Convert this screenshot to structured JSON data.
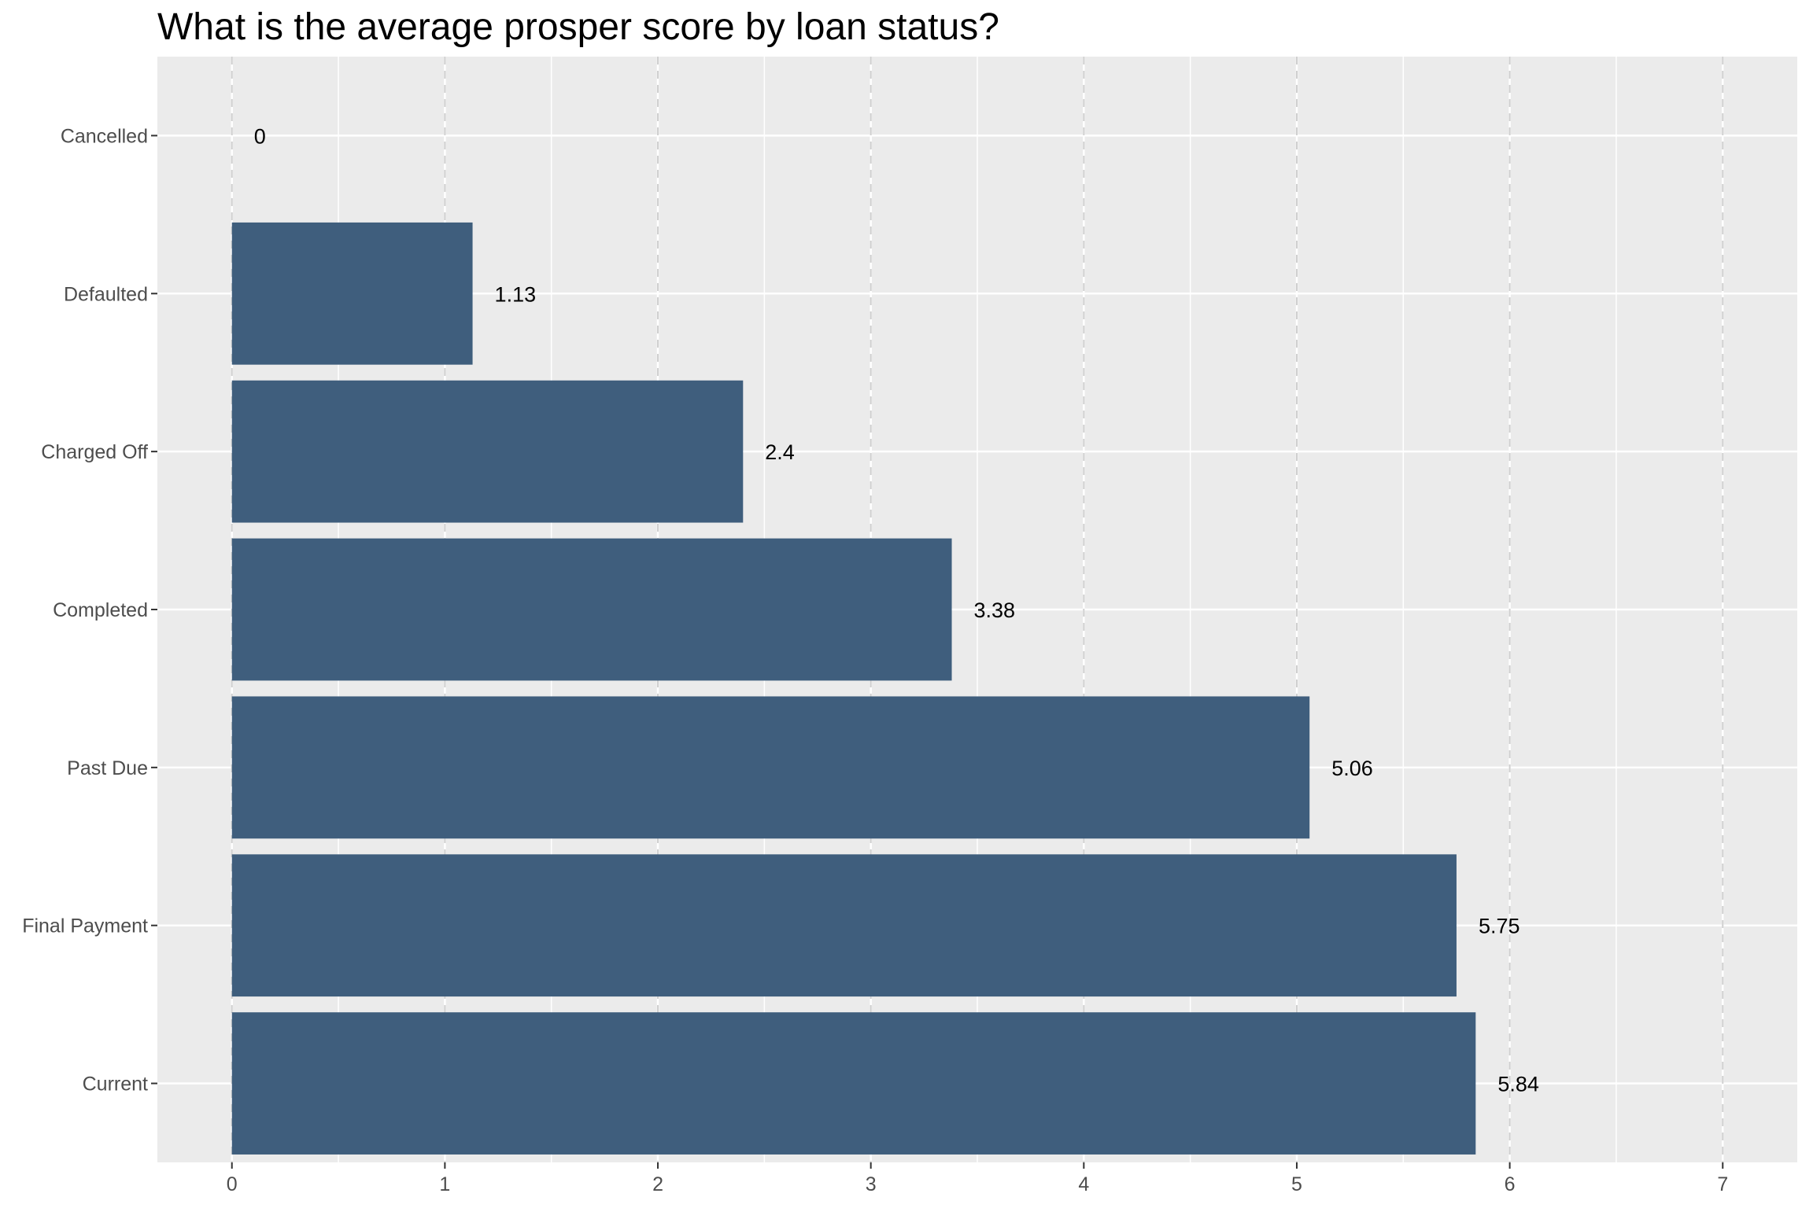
{
  "chart_data": {
    "type": "bar",
    "orientation": "horizontal",
    "title": "What is the average prosper score by loan status?",
    "xlabel": "",
    "ylabel": "",
    "categories": [
      "Cancelled",
      "Defaulted",
      "Charged Off",
      "Completed",
      "Past Due",
      "Final Payment",
      "Current"
    ],
    "values": [
      0,
      1.13,
      2.4,
      3.38,
      5.06,
      5.75,
      5.84
    ],
    "data_labels": [
      "0",
      "1.13",
      "2.4",
      "3.38",
      "5.06",
      "5.75",
      "5.84"
    ],
    "xlim": [
      -0.35,
      7.35
    ],
    "x_ticks": [
      0,
      1,
      2,
      3,
      4,
      5,
      6,
      7
    ],
    "x_tick_labels": [
      "0",
      "1",
      "2",
      "3",
      "4",
      "5",
      "6",
      "7"
    ],
    "grid": true,
    "vertical_grid_style": "dashed",
    "legend": "none",
    "colors": {
      "bar": "#3f5e7d",
      "panel": "#ebebeb",
      "grid": "#ffffff",
      "dashed_grid": "#cfcfcf"
    }
  }
}
